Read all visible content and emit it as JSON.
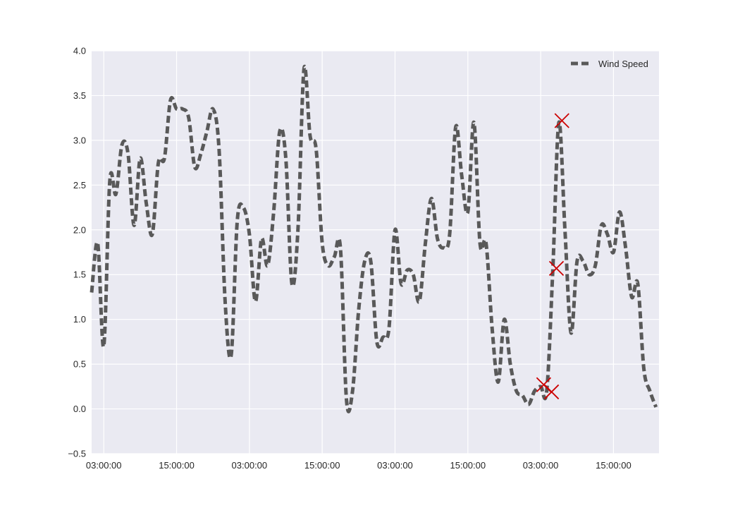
{
  "chart_data": {
    "type": "line",
    "title": "",
    "xlabel": "",
    "ylabel": "",
    "x_unit": "hours",
    "xlim": [
      -2,
      91.5
    ],
    "ylim": [
      -0.5,
      4.0
    ],
    "y_ticks": [
      -0.5,
      0.0,
      0.5,
      1.0,
      1.5,
      2.0,
      2.5,
      3.0,
      3.5,
      4.0
    ],
    "y_tick_labels": [
      "−0.5",
      "0.0",
      "0.5",
      "1.0",
      "1.5",
      "2.0",
      "2.5",
      "3.0",
      "3.5",
      "4.0"
    ],
    "x_ticks": [
      0,
      12,
      24,
      36,
      48,
      60,
      72,
      84
    ],
    "x_tick_labels": [
      "03:00:00",
      "15:00:00",
      "03:00:00",
      "15:00:00",
      "03:00:00",
      "15:00:00",
      "03:00:00",
      "15:00:00"
    ],
    "grid": true,
    "legend_position": "top-right",
    "colors": {
      "background": "#eaeaf2",
      "grid": "#ffffff",
      "line": "#595959",
      "marker": "#cc0000"
    },
    "series": [
      {
        "name": "Wind Speed",
        "style": "dashed",
        "x": [
          -2,
          -1,
          0,
          1,
          2,
          3,
          4,
          5,
          6,
          7,
          8,
          9,
          10,
          11,
          12,
          13,
          14,
          15,
          16,
          17,
          18,
          19,
          20,
          21,
          22,
          23,
          24,
          25,
          26,
          27,
          28,
          29,
          30,
          31,
          32,
          33,
          34,
          35,
          36,
          37,
          38,
          39,
          40,
          41,
          42,
          43,
          44,
          45,
          46,
          47,
          48,
          49,
          50,
          51,
          52,
          53,
          54,
          55,
          56,
          57,
          58,
          59,
          60,
          61,
          62,
          63,
          64,
          65,
          66,
          67,
          68,
          69,
          70,
          71,
          72,
          73,
          74,
          75,
          76,
          77,
          78,
          79,
          80,
          81,
          82,
          83,
          84,
          85,
          86,
          87,
          88,
          89,
          90,
          91
        ],
        "y": [
          1.3,
          1.85,
          0.7,
          2.55,
          2.4,
          2.95,
          2.85,
          2.05,
          2.8,
          2.3,
          1.95,
          2.75,
          2.8,
          3.45,
          3.35,
          3.35,
          3.25,
          2.7,
          2.85,
          3.1,
          3.35,
          2.9,
          1.2,
          0.6,
          2.1,
          2.25,
          1.95,
          1.2,
          1.9,
          1.6,
          2.2,
          3.1,
          2.8,
          1.4,
          2.0,
          3.8,
          3.05,
          2.9,
          1.85,
          1.6,
          1.7,
          1.8,
          0.1,
          0.2,
          1.1,
          1.65,
          1.65,
          0.75,
          0.8,
          0.9,
          2.0,
          1.4,
          1.55,
          1.5,
          1.2,
          1.85,
          2.35,
          1.9,
          1.8,
          1.95,
          3.15,
          2.6,
          2.2,
          3.2,
          1.85,
          1.85,
          0.9,
          0.3,
          1.0,
          0.5,
          0.2,
          0.15,
          0.05,
          0.2,
          0.25,
          0.2,
          1.55,
          3.2,
          2.0,
          0.85,
          1.65,
          1.65,
          1.5,
          1.6,
          2.05,
          1.95,
          1.75,
          2.2,
          1.8,
          1.25,
          1.4,
          0.45,
          0.2,
          0.02
        ]
      }
    ],
    "highlight_points": [
      {
        "x": 72.5,
        "y": 0.27
      },
      {
        "x": 73.8,
        "y": 0.19
      },
      {
        "x": 74.6,
        "y": 1.57
      },
      {
        "x": 75.5,
        "y": 3.22
      }
    ]
  }
}
